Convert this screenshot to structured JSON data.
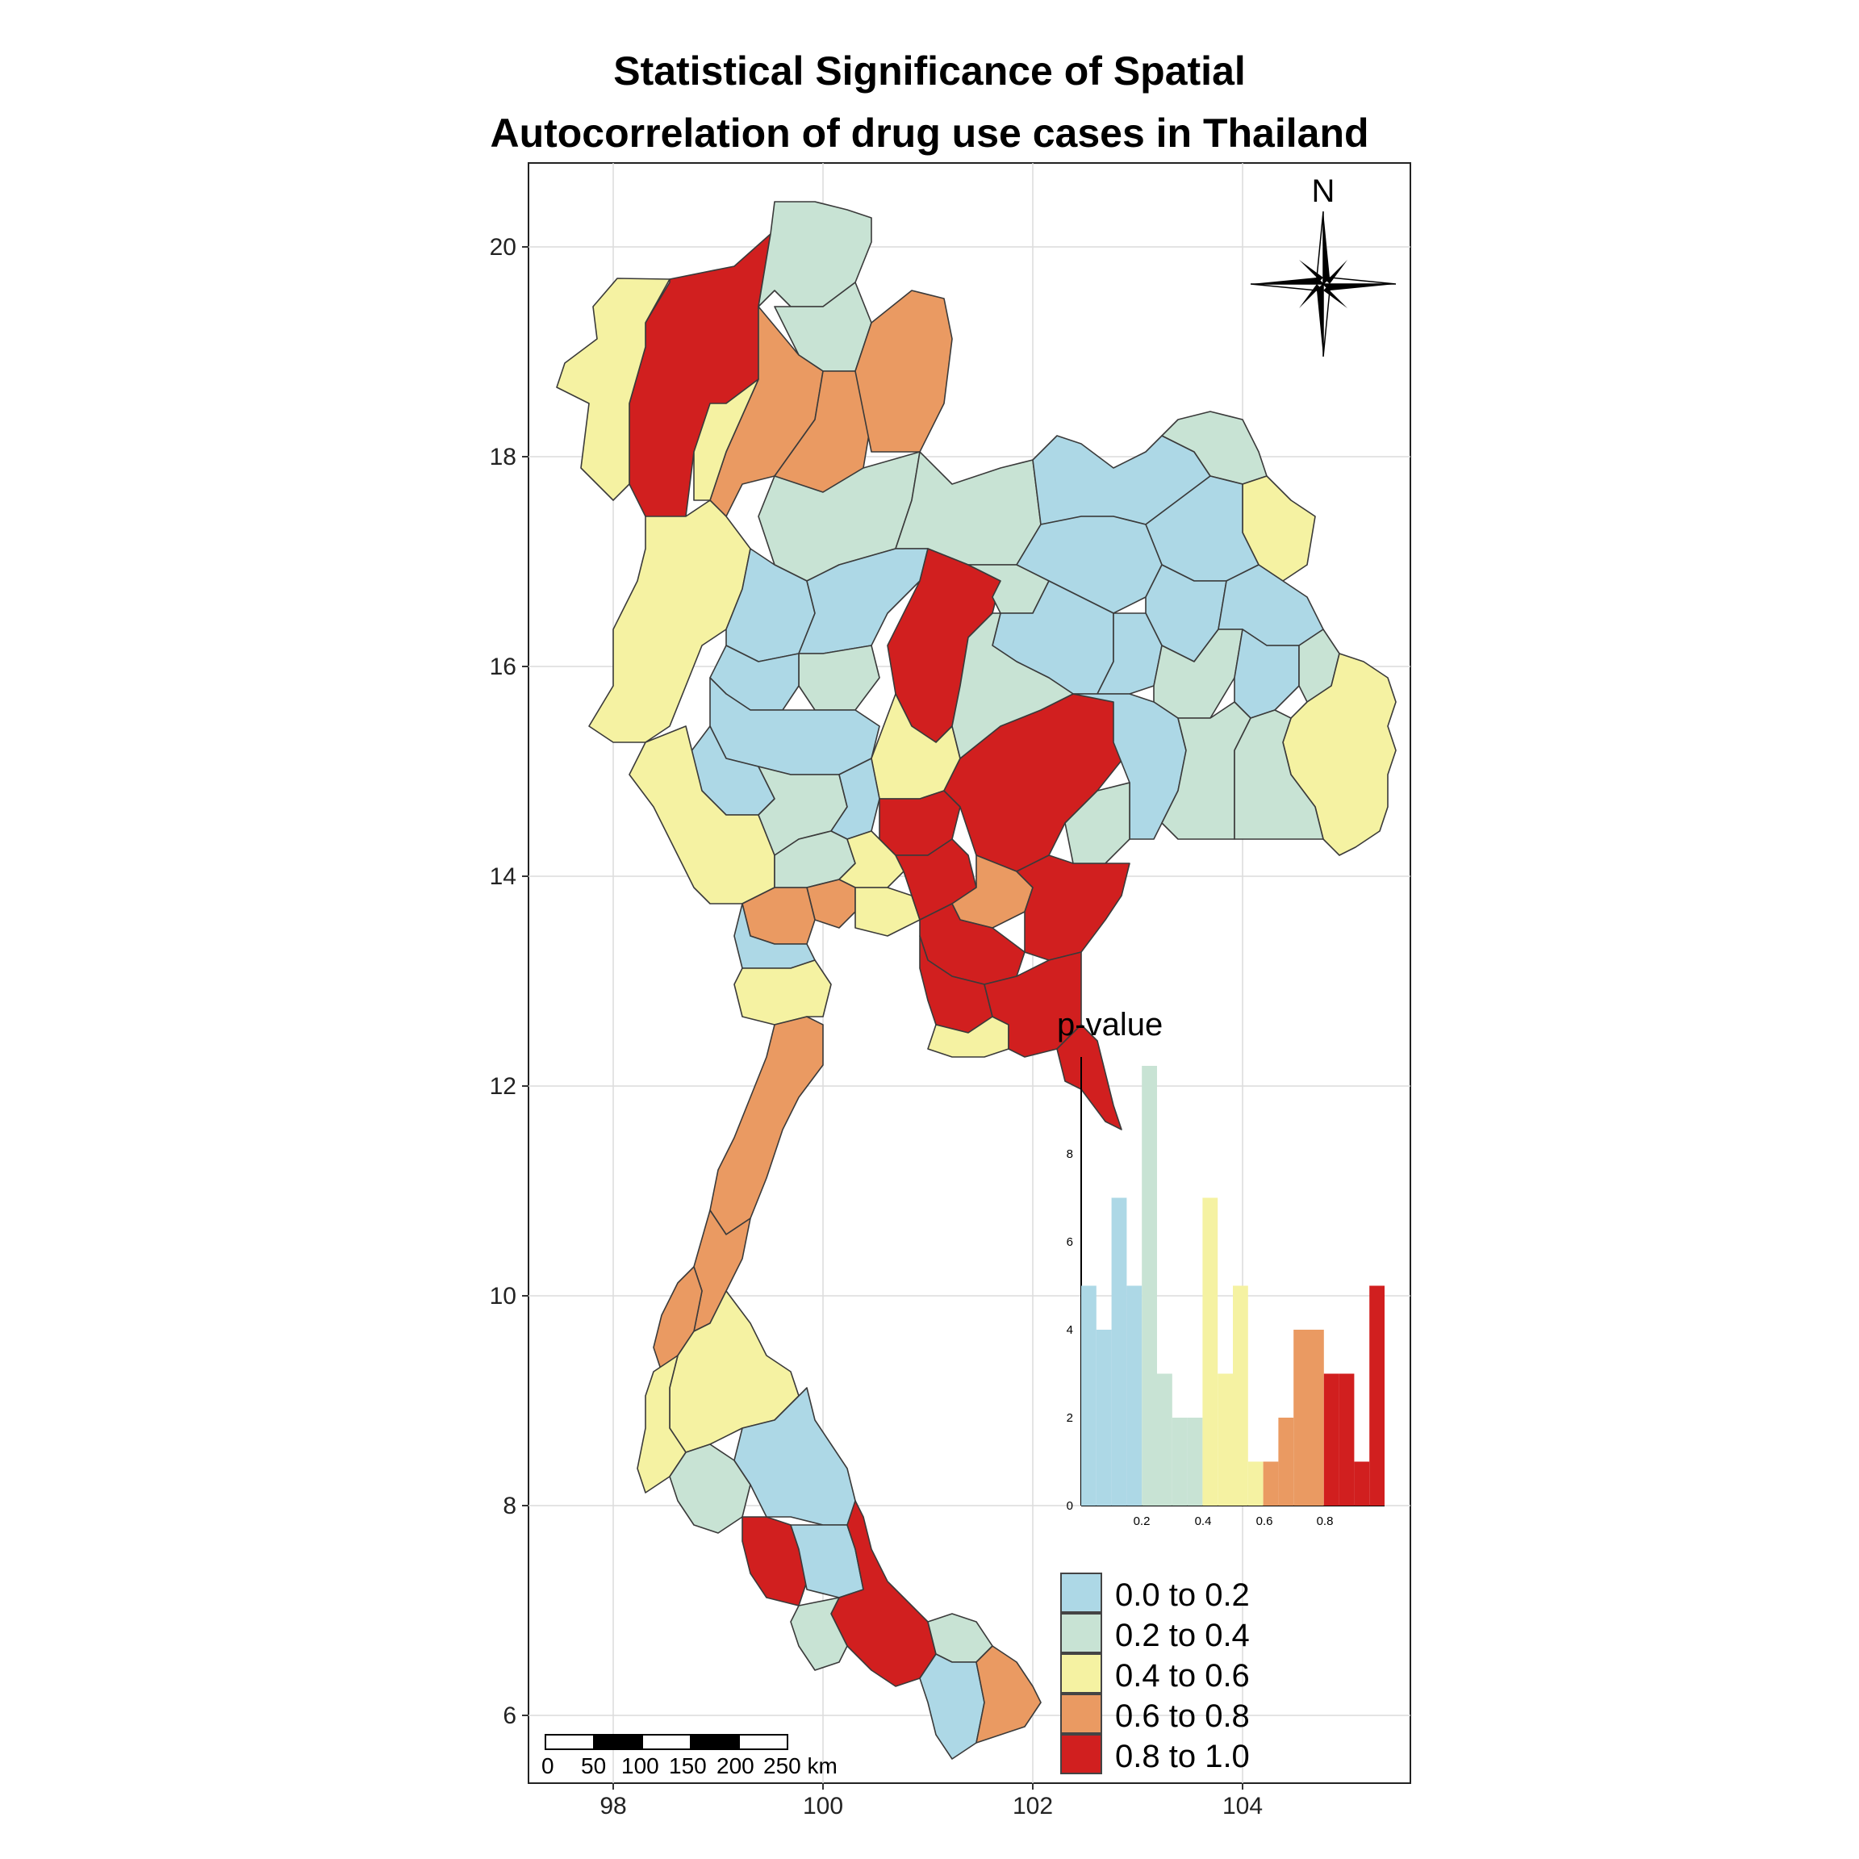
{
  "map": {
    "title_line1": "Statistical Significance of Spatial",
    "title_line2": "Autocorrelation of drug use cases in Thailand",
    "north_label": "N",
    "y_ticks": [
      "20",
      "18",
      "16",
      "14",
      "12",
      "10",
      "8",
      "6"
    ],
    "x_ticks": [
      "98",
      "100",
      "102",
      "104"
    ],
    "scale_bar": {
      "labels": [
        "0",
        "50",
        "100",
        "150",
        "200",
        "250 km"
      ]
    }
  },
  "colors": {
    "c1": "#add8e6",
    "c2": "#c8e3d4",
    "c3": "#f5f2a2",
    "c4": "#ea9a62",
    "c5": "#d11f1f"
  },
  "legend": {
    "title": "p-value",
    "items": [
      {
        "label": "0.0 to 0.2",
        "color": "#add8e6"
      },
      {
        "label": "0.2 to 0.4",
        "color": "#c8e3d4"
      },
      {
        "label": "0.4 to 0.6",
        "color": "#f5f2a2"
      },
      {
        "label": "0.6 to 0.8",
        "color": "#ea9a62"
      },
      {
        "label": "0.8 to 1.0",
        "color": "#d11f1f"
      }
    ]
  },
  "chart_data": {
    "type": "bar",
    "title": "",
    "xlabel": "",
    "ylabel": "",
    "x_ticks": [
      "0.2",
      "0.4",
      "0.6",
      "0.8"
    ],
    "y_ticks": [
      "0",
      "2",
      "4",
      "6",
      "8"
    ],
    "xlim": [
      0,
      1
    ],
    "ylim": [
      0,
      10
    ],
    "bin_width": 0.05,
    "bins": [
      {
        "x0": 0.0,
        "count": 5
      },
      {
        "x0": 0.05,
        "count": 4
      },
      {
        "x0": 0.1,
        "count": 7
      },
      {
        "x0": 0.15,
        "count": 5
      },
      {
        "x0": 0.2,
        "count": 10
      },
      {
        "x0": 0.25,
        "count": 3
      },
      {
        "x0": 0.3,
        "count": 2
      },
      {
        "x0": 0.35,
        "count": 2
      },
      {
        "x0": 0.4,
        "count": 7
      },
      {
        "x0": 0.45,
        "count": 3
      },
      {
        "x0": 0.5,
        "count": 5
      },
      {
        "x0": 0.55,
        "count": 1
      },
      {
        "x0": 0.6,
        "count": 1
      },
      {
        "x0": 0.65,
        "count": 2
      },
      {
        "x0": 0.7,
        "count": 4
      },
      {
        "x0": 0.75,
        "count": 4
      },
      {
        "x0": 0.8,
        "count": 3
      },
      {
        "x0": 0.85,
        "count": 3
      },
      {
        "x0": 0.9,
        "count": 1
      },
      {
        "x0": 0.95,
        "count": 5
      }
    ]
  }
}
